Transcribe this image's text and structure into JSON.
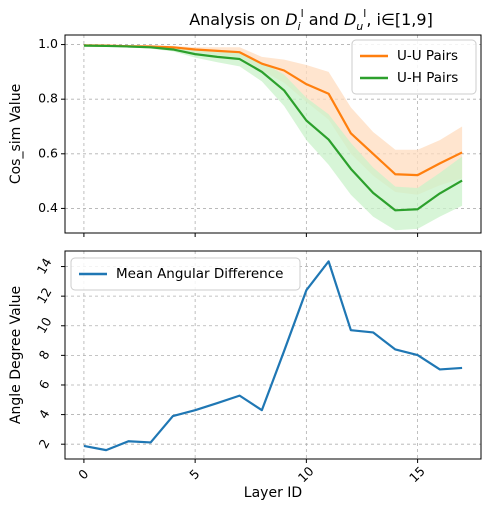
{
  "chart_data": [
    {
      "type": "line",
      "title": "Analysis on D_i^l and D_u^l, i∈[1,9]",
      "title_parts": {
        "prefix": "Analysis on ",
        "sym1": "D",
        "sub1": "i",
        "sup1": "l",
        "conj": " and ",
        "sym2": "D",
        "sub2": "u",
        "sup2": "l",
        "suffix": ", i∈[1,9]"
      },
      "xlabel": "",
      "ylabel": "Cos_sim Value",
      "xlim": [
        -0.85,
        17.85
      ],
      "ylim": [
        0.31,
        1.035
      ],
      "yticks": [
        0.4,
        0.6,
        0.8,
        1.0
      ],
      "ytick_labels": [
        "0.4",
        "0.6",
        "0.8",
        "1.0"
      ],
      "xticks": [
        0,
        5,
        10,
        15
      ],
      "grid": true,
      "legend_position": "top-right",
      "x": [
        0,
        1,
        2,
        3,
        4,
        5,
        6,
        7,
        8,
        9,
        10,
        11,
        12,
        13,
        14,
        15,
        16,
        17
      ],
      "series": [
        {
          "name": "U-U Pairs",
          "color": "#ff7f0e",
          "band_color": "#ffdcbf",
          "values": [
            0.997,
            0.996,
            0.994,
            0.993,
            0.99,
            0.982,
            0.977,
            0.972,
            0.93,
            0.905,
            0.855,
            0.82,
            0.675,
            0.6,
            0.525,
            0.522,
            0.565,
            0.605
          ],
          "lower": [
            0.997,
            0.995,
            0.992,
            0.989,
            0.985,
            0.972,
            0.962,
            0.955,
            0.905,
            0.86,
            0.79,
            0.725,
            0.6,
            0.52,
            0.46,
            0.45,
            0.485,
            0.51
          ],
          "upper": [
            0.997,
            0.997,
            0.996,
            0.996,
            0.995,
            0.99,
            0.99,
            0.99,
            0.955,
            0.945,
            0.925,
            0.9,
            0.77,
            0.68,
            0.615,
            0.615,
            0.65,
            0.7
          ]
        },
        {
          "name": "U-H Pairs",
          "color": "#2ca02c",
          "band_color": "#c9f2c9",
          "values": [
            0.996,
            0.995,
            0.993,
            0.99,
            0.982,
            0.965,
            0.955,
            0.947,
            0.9,
            0.832,
            0.722,
            0.652,
            0.545,
            0.457,
            0.393,
            0.397,
            0.455,
            0.502
          ],
          "lower": [
            0.996,
            0.994,
            0.99,
            0.985,
            0.975,
            0.952,
            0.935,
            0.92,
            0.865,
            0.775,
            0.65,
            0.56,
            0.45,
            0.37,
            0.32,
            0.325,
            0.37,
            0.41
          ],
          "upper": [
            0.997,
            0.996,
            0.995,
            0.995,
            0.99,
            0.978,
            0.972,
            0.972,
            0.935,
            0.89,
            0.805,
            0.745,
            0.64,
            0.55,
            0.48,
            0.475,
            0.53,
            0.59
          ]
        }
      ]
    },
    {
      "type": "line",
      "title": "",
      "xlabel": "Layer ID",
      "ylabel": "Angle Degree Value",
      "xlim": [
        -0.85,
        17.85
      ],
      "ylim": [
        1.0,
        15.05
      ],
      "yticks": [
        2,
        4,
        6,
        8,
        10,
        12,
        14
      ],
      "ytick_labels": [
        "2",
        "4",
        "6",
        "8",
        "10",
        "12",
        "14"
      ],
      "xticks": [
        0,
        5,
        10,
        15
      ],
      "xtick_labels": [
        "0",
        "5",
        "10",
        "15"
      ],
      "grid": true,
      "legend_position": "top-left",
      "x": [
        0,
        1,
        2,
        3,
        4,
        5,
        6,
        7,
        8,
        9,
        10,
        11,
        12,
        13,
        14,
        15,
        16,
        17
      ],
      "series": [
        {
          "name": "Mean Angular Difference",
          "color": "#1f77b4",
          "values": [
            1.88,
            1.6,
            2.2,
            2.12,
            3.9,
            4.3,
            4.78,
            5.28,
            4.3,
            8.3,
            12.4,
            14.35,
            9.7,
            9.55,
            8.4,
            8.02,
            7.05,
            7.15
          ]
        }
      ]
    }
  ]
}
